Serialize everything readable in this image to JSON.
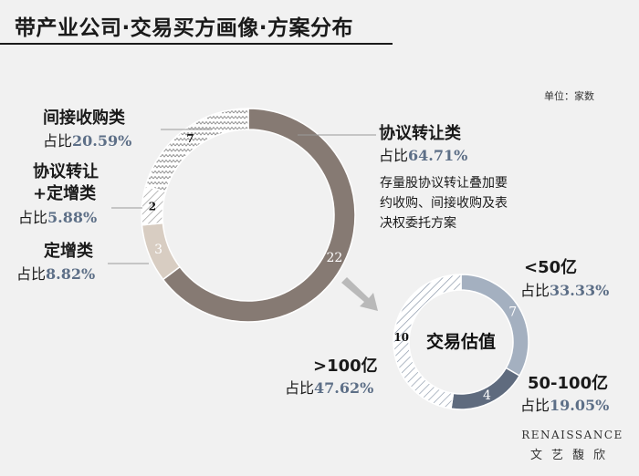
{
  "title": "带产业公司·交易买方画像·方案分布",
  "unit": "单位：家数",
  "pct_prefix": "占比",
  "note": "存量股协议转让叠加要约收购、间接收购及表决权委托方案",
  "logo": {
    "en": "RENAISSANCE",
    "cn": "文艺馥欣"
  },
  "colors": {
    "brown": "#867a73",
    "beige": "#d8cdc2",
    "slate_light": "#a4b0c0",
    "slate_dark": "#5f6b7e",
    "accent_value": "#5d6f87"
  },
  "chart_data": [
    {
      "type": "pie",
      "variant": "donut",
      "center_label": "",
      "slices": [
        {
          "label": "协议转让类",
          "value": 22,
          "percent": "64.71%",
          "fill": "solid-brown"
        },
        {
          "label": "定增类",
          "value": 3,
          "percent": "8.82%",
          "fill": "solid-beige"
        },
        {
          "label": "协议转让+定增类",
          "label_lines": [
            "协议转让",
            "+定增类"
          ],
          "value": 2,
          "percent": "5.88%",
          "fill": "hatch-diagonal"
        },
        {
          "label": "间接收购类",
          "value": 7,
          "percent": "20.59%",
          "fill": "hatch-zigzag"
        }
      ]
    },
    {
      "type": "pie",
      "variant": "donut",
      "center_label": "交易估值",
      "slices": [
        {
          "label": "<50亿",
          "value": 7,
          "percent": "33.33%",
          "fill": "solid-slate-light"
        },
        {
          "label": "50-100亿",
          "value": 4,
          "percent": "19.05%",
          "fill": "solid-slate-dark"
        },
        {
          "label": ">100亿",
          "value": 10,
          "percent": "47.62%",
          "fill": "hatch-diagonal"
        }
      ]
    }
  ]
}
